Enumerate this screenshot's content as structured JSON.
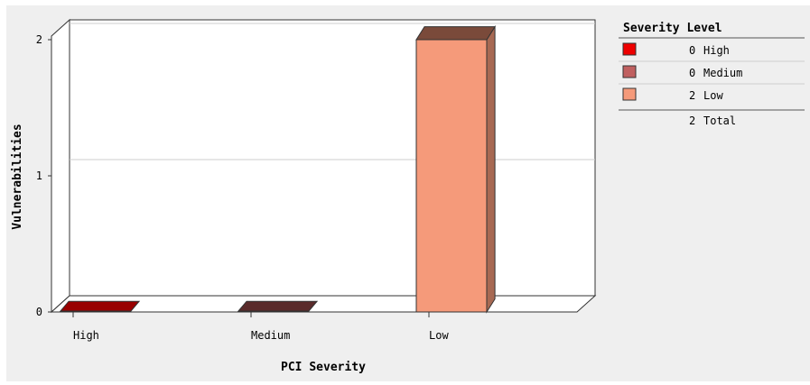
{
  "chart_data": {
    "type": "bar",
    "title": "",
    "xlabel": "PCI Severity",
    "ylabel": "Vulnerabilities",
    "categories": [
      "High",
      "Medium",
      "Low"
    ],
    "values": [
      0,
      0,
      2
    ],
    "ylim": [
      0,
      2
    ],
    "yticks": [
      0,
      1,
      2
    ],
    "grid": true,
    "three_d": true,
    "colors": {
      "High": "#990000",
      "Medium": "#5a2a2a",
      "Low": "#f59a7a"
    },
    "legend": {
      "position": "right",
      "title": "Severity Level",
      "entries": [
        {
          "count": "0",
          "label": "High",
          "color": "#ee0000"
        },
        {
          "count": "0",
          "label": "Medium",
          "color": "#c06060"
        },
        {
          "count": "2",
          "label": "Low",
          "color": "#f59a7a"
        }
      ],
      "total_count": "2",
      "total_label": "Total"
    }
  }
}
